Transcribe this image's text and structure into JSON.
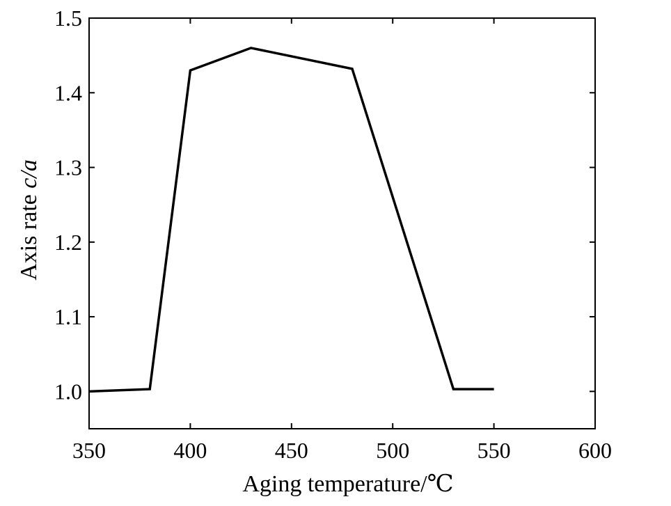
{
  "chart_data": {
    "type": "line",
    "title": "",
    "xlabel": "Aging temperature/℃",
    "ylabel_prefix": "Axis rate ",
    "ylabel_symbol": "c/a",
    "xlim": [
      350,
      600
    ],
    "ylim": [
      0.95,
      1.5
    ],
    "x_ticks": [
      350,
      400,
      450,
      500,
      550,
      600
    ],
    "x_tick_labels": [
      "350",
      "400",
      "450",
      "500",
      "550",
      "600"
    ],
    "y_ticks": [
      1.0,
      1.1,
      1.2,
      1.3,
      1.4,
      1.5
    ],
    "y_tick_labels": [
      "1.0",
      "1.1",
      "1.2",
      "1.3",
      "1.4",
      "1.5"
    ],
    "grid": false,
    "legend": "none",
    "line_color": "#000000",
    "series": [
      {
        "x": [
          350,
          380,
          400,
          430,
          480,
          530,
          550
        ],
        "y": [
          1.0,
          1.003,
          1.43,
          1.46,
          1.432,
          1.003,
          1.003
        ]
      }
    ]
  }
}
